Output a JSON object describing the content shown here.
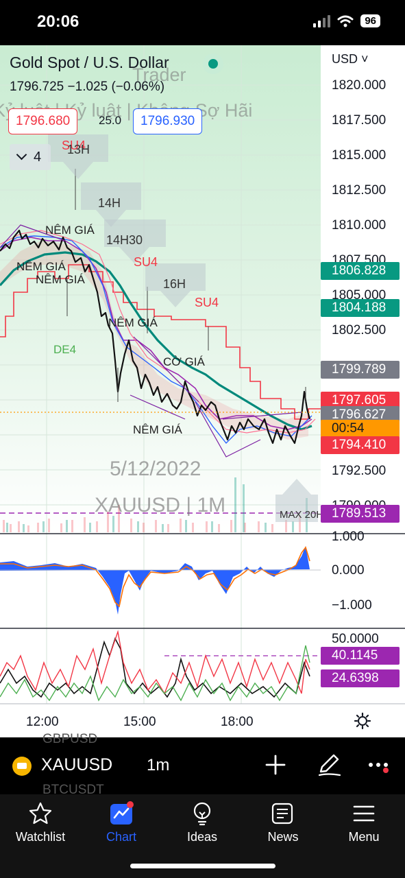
{
  "status_bar": {
    "time": "20:06",
    "battery": "96"
  },
  "header": {
    "title": "Gold Spot / U.S. Dollar",
    "price_line": "1796.725  −1.025 (−0.06%)",
    "watermark_line1": "Trader",
    "watermark_line2": "Kỷ luật | Kỷ luật | Không Sợ Hãi",
    "bid": "1796.680",
    "ask": "1796.930",
    "spread": "25.0",
    "indicators_count": "4",
    "currency": "USD"
  },
  "price_axis": {
    "labels": [
      "1820.000",
      "1817.500",
      "1815.000",
      "1812.500",
      "1810.000",
      "1807.500",
      "1805.000",
      "1802.500",
      "1792.500",
      "1790.000"
    ],
    "tags": {
      "green_1": "1806.828",
      "green_2": "1804.188",
      "gray_1": "1799.789",
      "red_1": "1797.605",
      "gray_2": "1796.627",
      "countdown": "00:54",
      "red_2": "1794.410",
      "purple": "1789.513"
    }
  },
  "chart_overlay": {
    "labels": [
      "SU4",
      "13H",
      "14H",
      "14H30",
      "SU4",
      "16H",
      "SU4",
      "NÊM GIÁ",
      "NÊM GIÁ",
      "NÊM GIÁ",
      "NÊM GIÁ",
      "DE4",
      "CỜ GIÁ",
      "NÊM GIÁ",
      "MAX 20H"
    ],
    "date_watermark": "5/12/2022",
    "symbol_watermark": "XAUUSD | 1M"
  },
  "osc1": {
    "labels": [
      "1.000",
      "0.000",
      "−1.000"
    ]
  },
  "osc2": {
    "labels": [
      "50.0000"
    ],
    "tags": {
      "purple": "40.1145",
      "red": "24.6398"
    }
  },
  "time_axis": [
    "12:00",
    "15:00",
    "18:00"
  ],
  "toolbar": {
    "symbol": "XAUUSD",
    "interval": "1m",
    "ghost_1": "GBPUSD",
    "ghost_2": "BTCUSDT"
  },
  "nav": [
    {
      "label": "Watchlist"
    },
    {
      "label": "Chart"
    },
    {
      "label": "Ideas"
    },
    {
      "label": "News"
    },
    {
      "label": "Menu"
    }
  ],
  "colors": {
    "accent": "#2962ff",
    "up": "#089981",
    "down": "#f23645",
    "purple": "#9c27b0"
  }
}
